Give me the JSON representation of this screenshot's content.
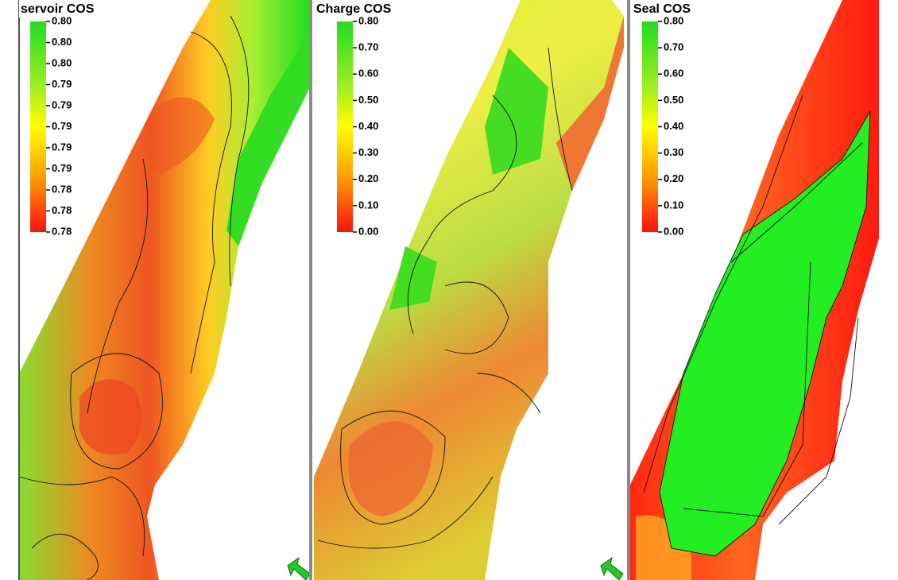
{
  "panels": [
    {
      "title": "servoir COS",
      "legend": [
        "0.80",
        "0.80",
        "0.80",
        "0.79",
        "0.79",
        "0.79",
        "0.79",
        "0.79",
        "0.78",
        "0.78",
        "0.78"
      ]
    },
    {
      "title": "Charge COS",
      "legend": [
        "0.80",
        "0.70",
        "0.60",
        "0.50",
        "0.40",
        "0.30",
        "0.20",
        "0.10",
        "0.00"
      ]
    },
    {
      "title": "Seal COS",
      "legend": [
        "0.80",
        "0.70",
        "0.60",
        "0.50",
        "0.40",
        "0.30",
        "0.20",
        "0.10",
        "0.00"
      ]
    }
  ]
}
